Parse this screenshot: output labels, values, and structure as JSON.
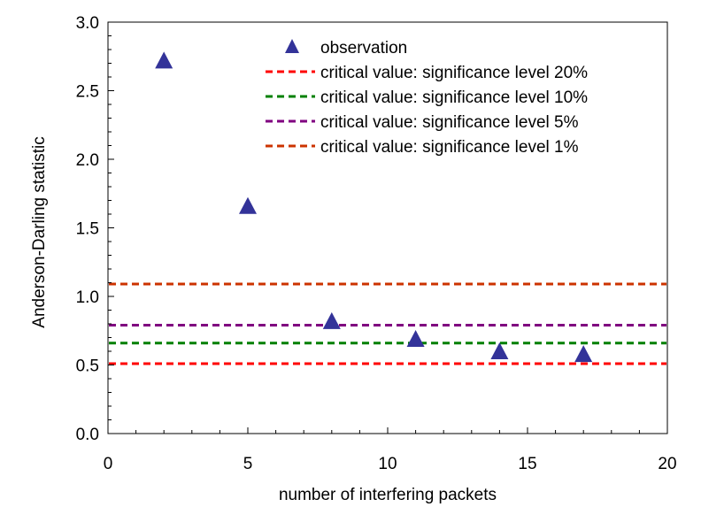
{
  "chart_data": {
    "type": "scatter",
    "xlabel": "number of interfering packets",
    "ylabel": "Anderson-Darling statistic",
    "xlim": [
      0,
      20
    ],
    "ylim": [
      0,
      3.0
    ],
    "x_ticks": [
      0,
      5,
      10,
      15,
      20
    ],
    "y_ticks": [
      0.0,
      0.5,
      1.0,
      1.5,
      2.0,
      2.5,
      3.0
    ],
    "x_tick_labels": [
      "0",
      "5",
      "10",
      "15",
      "20"
    ],
    "y_tick_labels": [
      "0.0",
      "0.5",
      "1.0",
      "1.5",
      "2.0",
      "2.5",
      "3.0"
    ],
    "grid": false,
    "legend_position": "top-center",
    "series": [
      {
        "name": "observation",
        "kind": "scatter",
        "marker": "triangle",
        "color": "#333399",
        "x": [
          2,
          5,
          8,
          11,
          14,
          17
        ],
        "y": [
          2.72,
          1.66,
          0.82,
          0.69,
          0.6,
          0.58
        ]
      }
    ],
    "reference_lines": [
      {
        "name": "critical value: significance level 20%",
        "y": 0.51,
        "color": "#ff0000"
      },
      {
        "name": "critical value: significance level 10%",
        "y": 0.66,
        "color": "#008000"
      },
      {
        "name": "critical value: significance level 5%",
        "y": 0.79,
        "color": "#800080"
      },
      {
        "name": "critical value: significance level 1%",
        "y": 1.09,
        "color": "#cc3300"
      }
    ]
  }
}
